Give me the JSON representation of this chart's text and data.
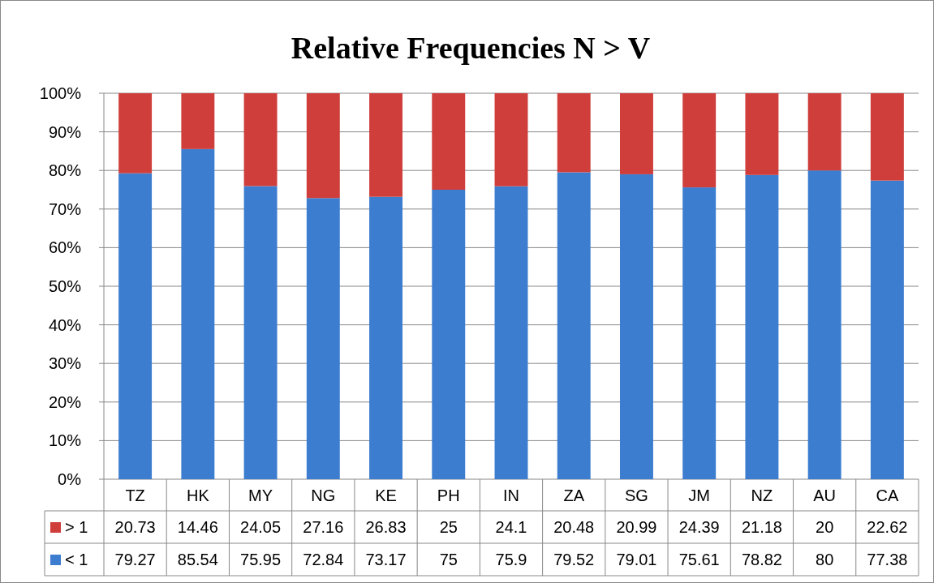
{
  "chart_data": {
    "type": "bar",
    "title": "Relative Frequencies N > V",
    "stacked": true,
    "categories": [
      "TZ",
      "HK",
      "MY",
      "NG",
      "KE",
      "PH",
      "IN",
      "ZA",
      "SG",
      "JM",
      "NZ",
      "AU",
      "CA"
    ],
    "series": [
      {
        "name": "< 1",
        "color": "#3c7dd0",
        "values": [
          79.27,
          85.54,
          75.95,
          72.84,
          73.17,
          75,
          75.9,
          79.52,
          79.01,
          75.61,
          78.82,
          80,
          77.38
        ]
      },
      {
        "name": "> 1",
        "color": "#cf3e3b",
        "values": [
          20.73,
          14.46,
          24.05,
          27.16,
          26.83,
          25,
          24.1,
          20.48,
          20.99,
          24.39,
          21.18,
          20,
          22.62
        ]
      }
    ],
    "ylim": [
      0,
      100
    ],
    "yticks": [
      {
        "value": 0,
        "label": "0%"
      },
      {
        "value": 10,
        "label": "10%"
      },
      {
        "value": 20,
        "label": "20%"
      },
      {
        "value": 30,
        "label": "30%"
      },
      {
        "value": 40,
        "label": "40%"
      },
      {
        "value": 50,
        "label": "50%"
      },
      {
        "value": 60,
        "label": "60%"
      },
      {
        "value": 70,
        "label": "70%"
      },
      {
        "value": 80,
        "label": "80%"
      },
      {
        "value": 90,
        "label": "90%"
      },
      {
        "value": 100,
        "label": "100%"
      }
    ],
    "grid": "y",
    "legend": "bottom",
    "data_labels": true
  }
}
